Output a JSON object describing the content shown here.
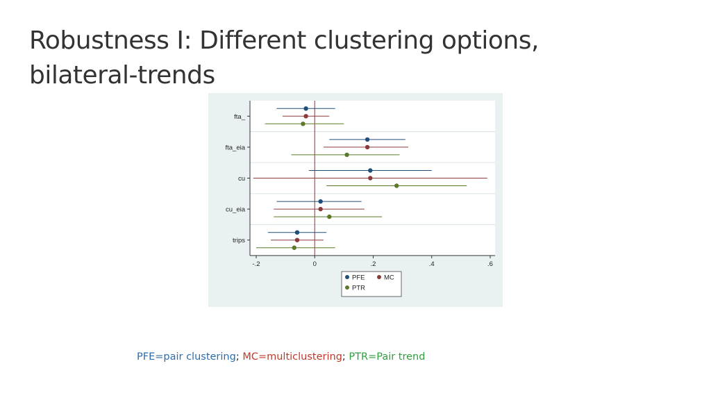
{
  "slide": {
    "title_line1": "Robustness I: Different clustering options,",
    "title_line2": "bilateral-trends"
  },
  "caption": {
    "pfe": "PFE=pair clustering",
    "sep1": ";",
    "mc": " MC=multiclustering",
    "sep2": ";",
    "ptr": " PTR=Pair trend"
  },
  "colors": {
    "PFE": "#1f4e79",
    "MC": "#8b3a3a",
    "PTR": "#5a7a2a",
    "zero_line": "#b22222",
    "plot_bg": "#ffffff",
    "figure_bg": "#eaf1f3"
  },
  "chart_data": {
    "type": "scatter",
    "subtype": "coefficient-plot",
    "title": "",
    "xlabel": "",
    "ylabel": "",
    "xlim": [
      -0.2,
      0.6
    ],
    "xticks": [
      -0.2,
      0,
      0.2,
      0.4,
      0.6
    ],
    "xtick_labels": [
      "-.2",
      "0",
      ".2",
      ".4",
      ".6"
    ],
    "zero_line": 0,
    "grid": true,
    "legend_position": "bottom-center",
    "categories": [
      "fta_",
      "fta_eia",
      "cu",
      "cu_eia",
      "trips"
    ],
    "series": [
      {
        "name": "PFE",
        "estimates": [
          -0.03,
          0.18,
          0.19,
          0.02,
          -0.06
        ],
        "ci_low": [
          -0.13,
          0.05,
          -0.02,
          -0.13,
          -0.16
        ],
        "ci_high": [
          0.07,
          0.31,
          0.4,
          0.16,
          0.04
        ]
      },
      {
        "name": "MC",
        "estimates": [
          -0.03,
          0.18,
          0.19,
          0.02,
          -0.06
        ],
        "ci_low": [
          -0.11,
          0.03,
          -0.21,
          -0.14,
          -0.15
        ],
        "ci_high": [
          0.05,
          0.32,
          0.59,
          0.17,
          0.03
        ]
      },
      {
        "name": "PTR",
        "estimates": [
          -0.04,
          0.11,
          0.28,
          0.05,
          -0.07
        ],
        "ci_low": [
          -0.17,
          -0.08,
          0.04,
          -0.14,
          -0.2
        ],
        "ci_high": [
          0.1,
          0.29,
          0.52,
          0.23,
          0.07
        ]
      }
    ]
  }
}
